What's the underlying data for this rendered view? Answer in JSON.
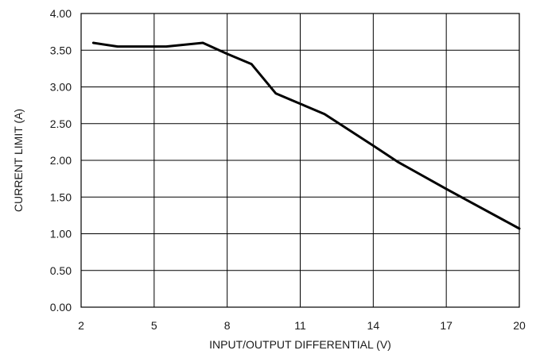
{
  "chart_data": {
    "type": "line",
    "title": "",
    "xlabel": "INPUT/OUTPUT DIFFERENTIAL (V)",
    "ylabel": "CURRENT LIMIT (A)",
    "xlim": [
      2,
      20
    ],
    "ylim": [
      0,
      4
    ],
    "x_ticks": [
      2,
      5,
      8,
      11,
      14,
      17,
      20
    ],
    "y_ticks": [
      "0.00",
      "0.50",
      "1.00",
      "1.50",
      "2.00",
      "2.50",
      "3.00",
      "3.50",
      "4.00"
    ],
    "grid": true,
    "legend": "none",
    "series": [
      {
        "x": [
          2.5,
          3.5,
          5.5,
          7,
          8,
          9,
          10,
          12,
          14,
          15,
          17,
          20
        ],
        "y": [
          3.6,
          3.55,
          3.55,
          3.6,
          3.45,
          3.31,
          2.91,
          2.63,
          2.2,
          1.98,
          1.61,
          1.07
        ],
        "color": "#000000"
      }
    ]
  }
}
